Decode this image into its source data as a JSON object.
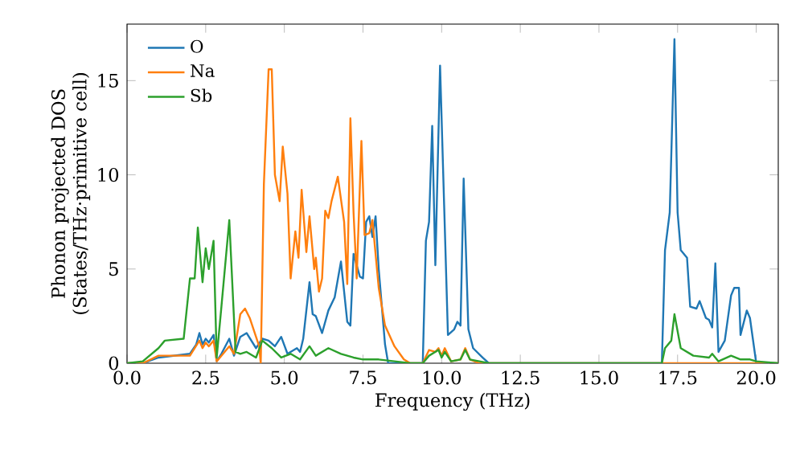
{
  "chart_data": {
    "type": "line",
    "xlabel": "Frequency (THz)",
    "ylabel": "Phonon projected DOS\n(States/THz·primitive cell)",
    "xlim": [
      0,
      20.7
    ],
    "ylim": [
      0,
      18
    ],
    "xticks": [
      {
        "value": 0,
        "label": "0.0"
      },
      {
        "value": 2.5,
        "label": "2.5"
      },
      {
        "value": 5,
        "label": "5.0"
      },
      {
        "value": 7.5,
        "label": "7.5"
      },
      {
        "value": 10,
        "label": "10.0"
      },
      {
        "value": 12.5,
        "label": "12.5"
      },
      {
        "value": 15,
        "label": "15.0"
      },
      {
        "value": 17.5,
        "label": "17.5"
      },
      {
        "value": 20,
        "label": "20.0"
      }
    ],
    "yticks": [
      0,
      5,
      10,
      15
    ],
    "grid": false,
    "legend": "top left",
    "marker": "none",
    "line_style": "solid",
    "series": [
      {
        "name": "O",
        "color": "#1f77b4",
        "x": [
          0,
          0.5,
          1,
          2,
          2.2,
          2.3,
          2.4,
          2.5,
          2.6,
          2.75,
          2.85,
          3.0,
          3.25,
          3.4,
          3.6,
          3.8,
          4.1,
          4.3,
          4.5,
          4.7,
          4.9,
          5.1,
          5.4,
          5.5,
          5.6,
          5.8,
          5.9,
          6.0,
          6.2,
          6.4,
          6.6,
          6.8,
          7.0,
          7.1,
          7.2,
          7.4,
          7.5,
          7.6,
          7.7,
          7.8,
          7.9,
          8.0,
          8.2,
          8.3,
          9.4,
          9.5,
          9.6,
          9.7,
          9.8,
          9.95,
          10.2,
          10.4,
          10.5,
          10.6,
          10.7,
          10.85,
          11,
          11.3,
          11.5,
          17,
          17.1,
          17.25,
          17.4,
          17.5,
          17.6,
          17.8,
          17.9,
          18.1,
          18.2,
          18.4,
          18.5,
          18.6,
          18.7,
          18.8,
          19.0,
          19.2,
          19.3,
          19.45,
          19.5,
          19.7,
          19.8,
          20.0,
          20.7
        ],
        "values": [
          0,
          0,
          0.3,
          0.5,
          1.0,
          1.6,
          1.0,
          1.3,
          1.1,
          1.5,
          0.1,
          0.5,
          1.3,
          0.4,
          1.4,
          1.6,
          0.8,
          1.3,
          1.2,
          0.9,
          1.4,
          0.5,
          0.8,
          0.6,
          1.3,
          4.3,
          2.6,
          2.5,
          1.6,
          2.8,
          3.5,
          5.4,
          2.2,
          2.0,
          5.8,
          4.6,
          4.5,
          7.5,
          7.8,
          6.7,
          7.8,
          5.0,
          1.0,
          0,
          0,
          6.5,
          7.5,
          12.6,
          5.2,
          15.8,
          1.5,
          1.8,
          2.2,
          2.0,
          9.8,
          1.8,
          0.8,
          0.3,
          0,
          0,
          6,
          8,
          17.2,
          8,
          6,
          5.6,
          3.0,
          2.9,
          3.3,
          2.4,
          2.3,
          1.9,
          5.3,
          0.6,
          1.2,
          3.6,
          4.0,
          4.0,
          1.5,
          2.8,
          2.4,
          0,
          0
        ]
      },
      {
        "name": "Na",
        "color": "#ff7f0e",
        "x": [
          0,
          0.5,
          1,
          2,
          2.3,
          2.4,
          2.5,
          2.6,
          2.75,
          2.85,
          3.25,
          3.4,
          3.6,
          3.75,
          3.9,
          4.2,
          4.25,
          4.35,
          4.5,
          4.6,
          4.7,
          4.85,
          4.95,
          5.1,
          5.2,
          5.35,
          5.45,
          5.55,
          5.7,
          5.8,
          5.95,
          6.0,
          6.1,
          6.2,
          6.3,
          6.4,
          6.5,
          6.7,
          6.9,
          7.0,
          7.1,
          7.2,
          7.3,
          7.45,
          7.55,
          7.7,
          7.8,
          8.0,
          8.2,
          8.5,
          8.8,
          9.0,
          9.4,
          9.6,
          9.8,
          9.9,
          10.0,
          10.1,
          10.3,
          10.6,
          10.75,
          10.9,
          11.2,
          20.7
        ],
        "values": [
          0,
          0,
          0.4,
          0.4,
          1.2,
          0.8,
          1.1,
          0.9,
          1.2,
          0.1,
          0.9,
          0.5,
          2.6,
          2.9,
          2.4,
          0.9,
          0,
          9.5,
          15.6,
          15.6,
          10,
          8.6,
          11.5,
          9,
          4.5,
          7,
          5.6,
          9.2,
          5.9,
          7.8,
          5,
          5.6,
          3.8,
          4.5,
          8.1,
          7.7,
          8.6,
          9.9,
          7.5,
          4.2,
          13,
          8,
          4.5,
          11.8,
          6.8,
          6.9,
          7.6,
          4,
          2,
          0.9,
          0.2,
          0,
          0,
          0.7,
          0.6,
          0.8,
          0.4,
          0.8,
          0.1,
          0.2,
          0.8,
          0.2,
          0,
          0
        ]
      },
      {
        "name": "Sb",
        "color": "#2ca02c",
        "x": [
          0,
          0.5,
          1,
          1.2,
          1.8,
          2.0,
          2.15,
          2.25,
          2.4,
          2.5,
          2.6,
          2.75,
          2.85,
          3.0,
          3.25,
          3.45,
          3.6,
          3.8,
          4.1,
          4.3,
          4.6,
          4.9,
          5.2,
          5.5,
          5.8,
          6.0,
          6.4,
          6.8,
          7.2,
          7.5,
          8,
          8.5,
          9,
          9.4,
          9.6,
          9.9,
          10.0,
          10.1,
          10.3,
          10.6,
          10.75,
          10.9,
          11.2,
          11.5,
          17,
          17.1,
          17.3,
          17.4,
          17.6,
          18,
          18.5,
          18.6,
          18.8,
          19.2,
          19.5,
          19.8,
          20,
          20.7
        ],
        "values": [
          0,
          0.1,
          0.8,
          1.2,
          1.3,
          4.5,
          4.5,
          7.2,
          4.3,
          6.1,
          5.0,
          6.5,
          0.3,
          3.0,
          7.6,
          0.6,
          0.5,
          0.6,
          0.3,
          1.2,
          0.8,
          0.3,
          0.5,
          0.2,
          0.9,
          0.4,
          0.8,
          0.5,
          0.3,
          0.2,
          0.2,
          0.1,
          0,
          0,
          0.4,
          0.7,
          0.3,
          0.6,
          0.1,
          0.2,
          0.7,
          0.2,
          0.1,
          0,
          0,
          0.8,
          1.2,
          2.6,
          0.8,
          0.4,
          0.3,
          0.5,
          0.1,
          0.4,
          0.2,
          0.2,
          0.1,
          0
        ]
      }
    ]
  }
}
